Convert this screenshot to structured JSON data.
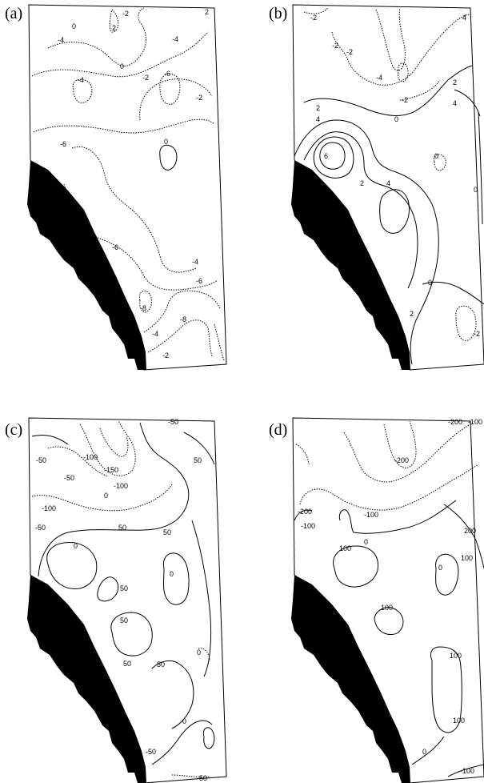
{
  "panels": [
    {
      "id": "a",
      "label": "(a)",
      "contour_labels": [
        "2",
        "-2",
        "2",
        "0",
        "-4",
        "-4",
        "0",
        "-2",
        "-6",
        "-4",
        "-2",
        "-6",
        "0",
        "-6",
        "-4",
        "-6",
        "-8",
        "-8",
        "-4",
        "-2"
      ]
    },
    {
      "id": "b",
      "label": "(b)",
      "contour_labels": [
        "-2",
        "4",
        "-2",
        "-2",
        "-4",
        "2",
        "4",
        "-2",
        "0",
        "2",
        "4",
        "6",
        "0",
        "2",
        "4",
        "0",
        "2",
        "0",
        "-2"
      ]
    },
    {
      "id": "c",
      "label": "(c)",
      "contour_labels": [
        "-50",
        "-100",
        "-150",
        "-50",
        "-100",
        "-50",
        "-100",
        "-50",
        "0",
        "50",
        "50",
        "0",
        "50",
        "0",
        "50",
        "50",
        "50",
        "50",
        "0",
        "0",
        "-50"
      ]
    },
    {
      "id": "d",
      "label": "(d)",
      "contour_labels": [
        "-200",
        "-100",
        "-200",
        "-200",
        "-100",
        "-100",
        "0",
        "100",
        "200",
        "0",
        "100",
        "100",
        "100",
        "100",
        "0",
        "-100"
      ]
    }
  ]
}
